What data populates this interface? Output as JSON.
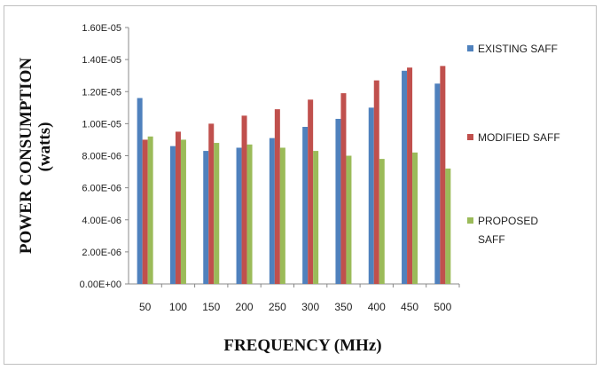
{
  "chart_data": {
    "type": "bar",
    "title": "",
    "xlabel": "FREQUENCY (MHz)",
    "ylabel_line1": "POWER CONSUMPTION",
    "ylabel_line2": "(watts)",
    "categories": [
      "50",
      "100",
      "150",
      "200",
      "250",
      "300",
      "350",
      "400",
      "450",
      "500"
    ],
    "yticks": [
      "0.00E+00",
      "2.00E-06",
      "4.00E-06",
      "6.00E-06",
      "8.00E-06",
      "1.00E-05",
      "1.20E-05",
      "1.40E-05",
      "1.60E-05"
    ],
    "ylim": [
      0,
      1.6e-05
    ],
    "grid": false,
    "legend_position": "right",
    "series": [
      {
        "name": "EXISTING SAFF",
        "legend_lines": [
          "EXISTING SAFF"
        ],
        "color": "#4f81bd",
        "values": [
          1.16e-05,
          8.6e-06,
          8.3e-06,
          8.5e-06,
          9.1e-06,
          9.8e-06,
          1.03e-05,
          1.1e-05,
          1.33e-05,
          1.25e-05
        ]
      },
      {
        "name": "MODIFIED SAFF",
        "legend_lines": [
          "MODIFIED SAFF"
        ],
        "color": "#c0504d",
        "values": [
          9e-06,
          9.5e-06,
          1e-05,
          1.05e-05,
          1.09e-05,
          1.15e-05,
          1.19e-05,
          1.27e-05,
          1.35e-05,
          1.36e-05
        ]
      },
      {
        "name": "PROPOSED SAFF",
        "legend_lines": [
          "PROPOSED",
          "SAFF"
        ],
        "color": "#9bbb59",
        "values": [
          9.2e-06,
          9e-06,
          8.8e-06,
          8.7e-06,
          8.5e-06,
          8.3e-06,
          8e-06,
          7.8e-06,
          8.2e-06,
          7.2e-06
        ]
      }
    ]
  }
}
